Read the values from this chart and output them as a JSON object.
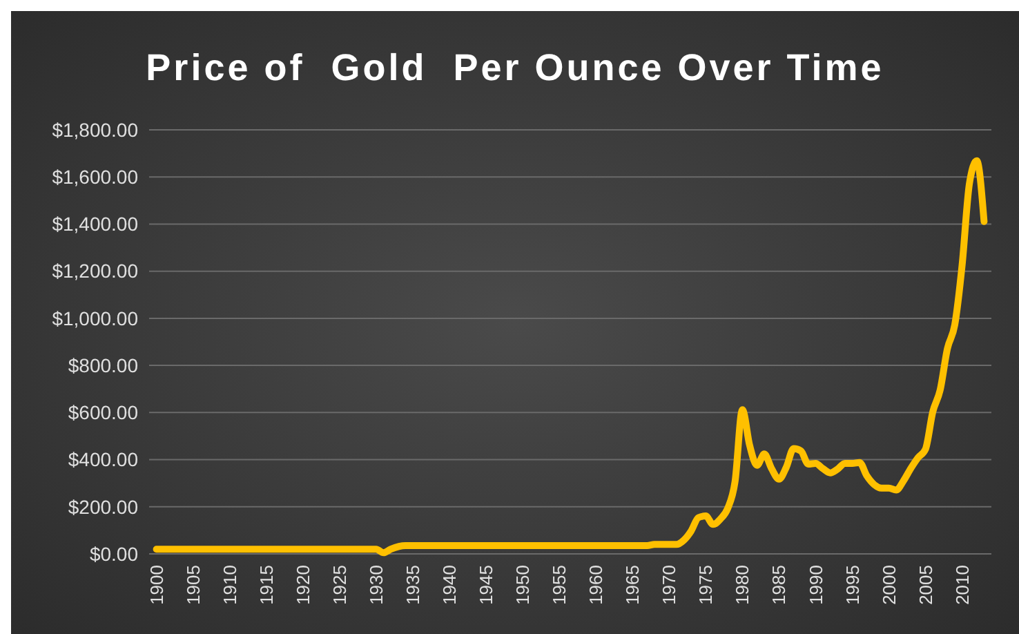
{
  "chart_data": {
    "type": "line",
    "title": "Price of  Gold  Per Ounce Over Time",
    "x": [
      1900,
      1905,
      1910,
      1915,
      1920,
      1925,
      1930,
      1931,
      1932,
      1934,
      1935,
      1940,
      1945,
      1950,
      1955,
      1960,
      1965,
      1967,
      1968,
      1970,
      1971,
      1972,
      1973,
      1974,
      1975,
      1976,
      1977,
      1978,
      1979,
      1980,
      1981,
      1982,
      1983,
      1984,
      1985,
      1986,
      1987,
      1988,
      1989,
      1990,
      1991,
      1992,
      1993,
      1994,
      1995,
      1996,
      1997,
      1998,
      1999,
      2000,
      2001,
      2002,
      2003,
      2004,
      2005,
      2006,
      2007,
      2008,
      2009,
      2010,
      2011,
      2012,
      2013
    ],
    "series": [
      {
        "color": "#ffc000",
        "values": [
          20,
          20,
          20,
          20,
          20,
          20,
          20,
          5,
          20,
          35,
          35,
          35,
          35,
          35,
          35,
          35,
          35,
          35,
          40,
          40,
          40,
          58,
          97,
          154,
          161,
          125,
          148,
          193,
          307,
          612,
          460,
          376,
          424,
          361,
          317,
          368,
          447,
          437,
          381,
          384,
          362,
          344,
          360,
          384,
          384,
          388,
          331,
          294,
          279,
          279,
          271,
          310,
          363,
          409,
          444,
          603,
          695,
          872,
          972,
          1225,
          1572,
          1669,
          1411
        ]
      }
    ],
    "xlim": [
      1899,
      2014
    ],
    "xticks": [
      1900,
      1905,
      1910,
      1915,
      1920,
      1925,
      1930,
      1935,
      1940,
      1945,
      1950,
      1955,
      1960,
      1965,
      1970,
      1975,
      1980,
      1985,
      1990,
      1995,
      2000,
      2005,
      2010
    ],
    "ylim": [
      0,
      1800
    ],
    "yticks": [
      {
        "value": 0,
        "label": "$0.00"
      },
      {
        "value": 200,
        "label": "$200.00"
      },
      {
        "value": 400,
        "label": "$400.00"
      },
      {
        "value": 600,
        "label": "$600.00"
      },
      {
        "value": 800,
        "label": "$800.00"
      },
      {
        "value": 1000,
        "label": "$1,000.00"
      },
      {
        "value": 1200,
        "label": "$1,200.00"
      },
      {
        "value": 1400,
        "label": "$1,400.00"
      },
      {
        "value": 1600,
        "label": "$1,600.00"
      },
      {
        "value": 1800,
        "label": "$1,800.00"
      }
    ],
    "grid": "y",
    "marker": "none",
    "line_style": "solid"
  }
}
